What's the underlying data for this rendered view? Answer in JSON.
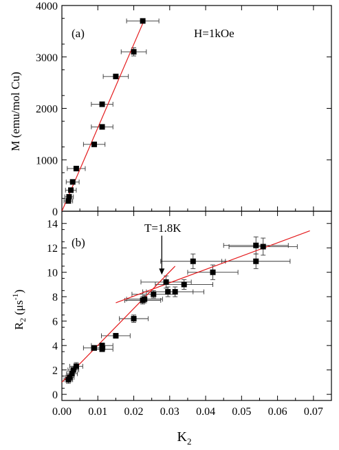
{
  "chart_data": [
    {
      "type": "scatter",
      "panel_label": "(a)",
      "annotation": "H=1kOe",
      "ylabel": "M (emu/mol Cu)",
      "xlim": [
        0,
        0.075
      ],
      "ylim": [
        0,
        4000
      ],
      "yticks": [
        "0",
        "1000",
        "2000",
        "3000",
        "4000"
      ],
      "series": [
        {
          "points": [
            {
              "x": 0.0018,
              "y": 200,
              "xerr": 0.0012
            },
            {
              "x": 0.002,
              "y": 280,
              "xerr": 0.0012
            },
            {
              "x": 0.0025,
              "y": 410,
              "xerr": 0.0015
            },
            {
              "x": 0.003,
              "y": 570,
              "xerr": 0.0018
            },
            {
              "x": 0.004,
              "y": 830,
              "xerr": 0.0025
            },
            {
              "x": 0.009,
              "y": 1300,
              "xerr": 0.003
            },
            {
              "x": 0.0112,
              "y": 1640,
              "xerr": 0.003
            },
            {
              "x": 0.0112,
              "y": 2080,
              "xerr": 0.003
            },
            {
              "x": 0.015,
              "y": 2620,
              "xerr": 0.0035
            },
            {
              "x": 0.02,
              "y": 3100,
              "xerr": 0.0035,
              "yerr": 80
            },
            {
              "x": 0.0225,
              "y": 3700,
              "xerr": 0.0045
            }
          ]
        }
      ],
      "fit_lines": [
        {
          "x": [
            0.0,
            0.0228
          ],
          "y": [
            0,
            3700
          ]
        }
      ]
    },
    {
      "type": "scatter",
      "panel_label": "(b)",
      "annotation": "T=1.8K",
      "ylabel_main": "R",
      "ylabel_sub": "2",
      "ylabel_unit_open": " (μs",
      "ylabel_sup": "-1",
      "ylabel_unit_close": ")",
      "xlabel_main": "K",
      "xlabel_sub": "2",
      "xlim": [
        0,
        0.075
      ],
      "ylim": [
        -0.5,
        15
      ],
      "xticks": [
        "0.00",
        "0.01",
        "0.02",
        "0.03",
        "0.04",
        "0.05",
        "0.06",
        "0.07"
      ],
      "yticks": [
        "0",
        "2",
        "4",
        "6",
        "8",
        "10",
        "12",
        "14"
      ],
      "series": [
        {
          "points": [
            {
              "x": 0.0018,
              "y": 1.2,
              "xerr": 0.0012,
              "yerr": 0.3
            },
            {
              "x": 0.0022,
              "y": 1.4,
              "xerr": 0.0012,
              "yerr": 0.3
            },
            {
              "x": 0.0028,
              "y": 1.7,
              "xerr": 0.0015,
              "yerr": 0.3
            },
            {
              "x": 0.0032,
              "y": 2.0,
              "xerr": 0.0015,
              "yerr": 0.3
            },
            {
              "x": 0.004,
              "y": 2.3,
              "xerr": 0.0018,
              "yerr": 0.3
            },
            {
              "x": 0.009,
              "y": 3.8,
              "xerr": 0.003,
              "yerr": 0.2
            },
            {
              "x": 0.0112,
              "y": 3.7,
              "xerr": 0.003,
              "yerr": 0.2
            },
            {
              "x": 0.0112,
              "y": 4.0,
              "xerr": 0.003,
              "yerr": 0.2
            },
            {
              "x": 0.015,
              "y": 4.8,
              "xerr": 0.004,
              "yerr": 0.2
            },
            {
              "x": 0.02,
              "y": 6.2,
              "xerr": 0.004,
              "yerr": 0.3
            },
            {
              "x": 0.0225,
              "y": 7.7,
              "xerr": 0.005,
              "yerr": 0.3
            },
            {
              "x": 0.023,
              "y": 7.8,
              "xerr": 0.005,
              "yerr": 0.3
            },
            {
              "x": 0.0255,
              "y": 8.2,
              "xerr": 0.006,
              "yerr": 0.3
            },
            {
              "x": 0.029,
              "y": 9.2,
              "xerr": 0.007,
              "yerr": 0.5
            },
            {
              "x": 0.0295,
              "y": 8.4,
              "xerr": 0.007,
              "yerr": 0.4
            },
            {
              "x": 0.0315,
              "y": 8.4,
              "xerr": 0.008,
              "yerr": 0.4
            },
            {
              "x": 0.034,
              "y": 9.0,
              "xerr": 0.008,
              "yerr": 0.4
            },
            {
              "x": 0.0365,
              "y": 10.9,
              "xerr": 0.009,
              "yerr": 0.6
            },
            {
              "x": 0.042,
              "y": 10.0,
              "xerr": 0.007,
              "yerr": 0.6
            },
            {
              "x": 0.054,
              "y": 12.2,
              "xerr": 0.009,
              "yerr": 0.7
            },
            {
              "x": 0.054,
              "y": 10.9,
              "xerr": 0.0095,
              "yerr": 0.6
            },
            {
              "x": 0.056,
              "y": 12.1,
              "xerr": 0.0095,
              "yerr": 0.7
            }
          ]
        }
      ],
      "fit_lines": [
        {
          "x": [
            0.0,
            0.0315
          ],
          "y": [
            1.0,
            10.5
          ]
        },
        {
          "x": [
            0.015,
            0.069
          ],
          "y": [
            7.5,
            13.4
          ]
        }
      ],
      "arrow": {
        "x": 0.0278,
        "y_from": 13.0,
        "y_to": 9.8
      }
    }
  ]
}
